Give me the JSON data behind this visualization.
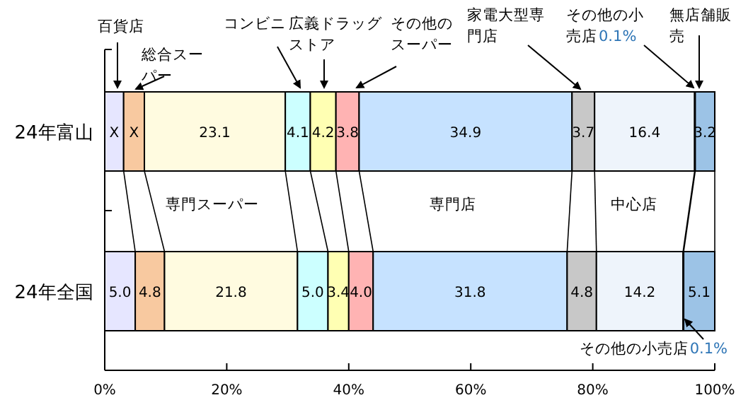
{
  "chart_data": {
    "type": "bar",
    "orientation": "horizontal",
    "stacked": true,
    "categories": [
      "24年富山",
      "24年全国"
    ],
    "xlim": [
      0,
      100
    ],
    "xticks": [
      {
        "value": 0,
        "label": "0%"
      },
      {
        "value": 20,
        "label": "20%"
      },
      {
        "value": 40,
        "label": "40%"
      },
      {
        "value": 60,
        "label": "60%"
      },
      {
        "value": 80,
        "label": "80%"
      },
      {
        "value": 100,
        "label": "100%"
      }
    ],
    "grid": false,
    "legend": false,
    "annotations": [
      "その他の小売店"
    ],
    "series": [
      {
        "name": "百貨店",
        "color": "#e6e6ff",
        "values": [
          3.1,
          5.0
        ],
        "value_labels": [
          "X",
          "5.0"
        ]
      },
      {
        "name": "総合スーパー",
        "color": "#f8c9a0",
        "values": [
          3.4,
          4.8
        ],
        "value_labels": [
          "X",
          "4.8"
        ]
      },
      {
        "name": "専門スーパー",
        "color": "#fffbe0",
        "values": [
          23.1,
          21.8
        ],
        "value_labels": [
          "23.1",
          "21.8"
        ]
      },
      {
        "name": "コンビニ",
        "color": "#ccffff",
        "values": [
          4.1,
          5.0
        ],
        "value_labels": [
          "4.1",
          "5.0"
        ]
      },
      {
        "name": "広義ドラッグストア",
        "color": "#ffffb3",
        "values": [
          4.2,
          3.4
        ],
        "value_labels": [
          "4.2",
          "3.4"
        ]
      },
      {
        "name": "その他のスーパー",
        "color": "#ffb3b3",
        "values": [
          3.8,
          4.0
        ],
        "value_labels": [
          "3.8",
          "4.0"
        ]
      },
      {
        "name": "専門店",
        "color": "#c6e2ff",
        "values": [
          34.9,
          31.8
        ],
        "value_labels": [
          "34.9",
          "31.8"
        ]
      },
      {
        "name": "家電大型専門店",
        "color": "#c8c8c8",
        "values": [
          3.7,
          4.8
        ],
        "value_labels": [
          "3.7",
          "4.8"
        ]
      },
      {
        "name": "中心店",
        "color": "#eef4fb",
        "values": [
          16.4,
          14.2
        ],
        "value_labels": [
          "16.4",
          "14.2"
        ]
      },
      {
        "name": "その他の小売店",
        "color": "#4a7fc0",
        "values": [
          0.1,
          0.1
        ],
        "value_labels": [
          "0.1%",
          "0.1%"
        ]
      },
      {
        "name": "無店舗販売",
        "color": "#9cc3e6",
        "values": [
          3.2,
          5.1
        ],
        "value_labels": [
          "3.2",
          "5.1"
        ]
      }
    ]
  }
}
